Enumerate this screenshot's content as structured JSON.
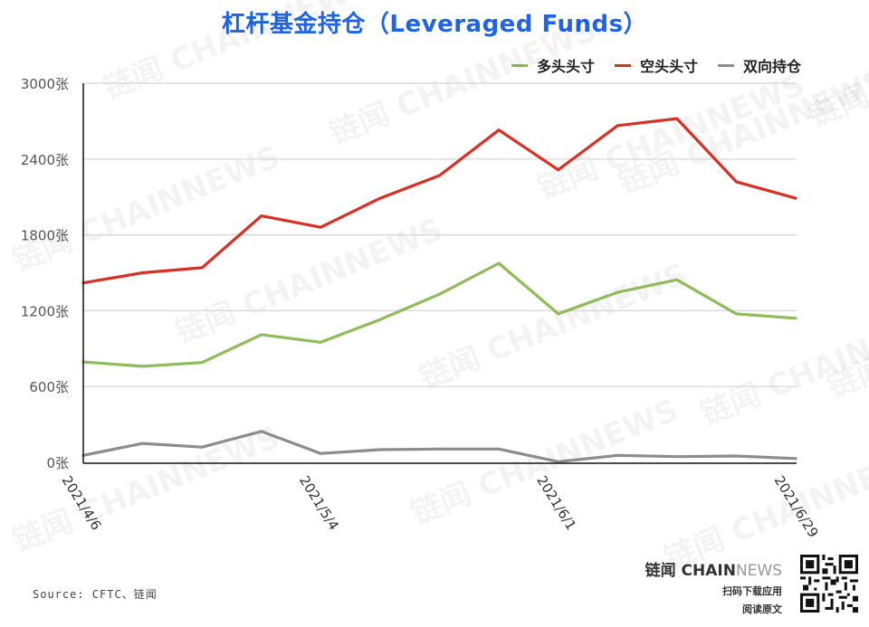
{
  "header": {
    "title": "杠杆基金持仓（Leveraged Funds）"
  },
  "legend": [
    {
      "label": "多头头寸",
      "color": "#8fbc5a"
    },
    {
      "label": "空头头寸",
      "color": "#d93025"
    },
    {
      "label": "双向持仓",
      "color": "#8c8c8c"
    }
  ],
  "axis": {
    "y_ticks": [
      "0张",
      "600张",
      "1200张",
      "1800张",
      "2400张",
      "3000张"
    ],
    "x_ticks": [
      "2021/4/6",
      "2021/5/4",
      "2021/6/1",
      "2021/6/29"
    ]
  },
  "footer": {
    "source": "Source: CFTC、链闻",
    "brand_cn": "链闻 ",
    "brand_chain": "CHAIN",
    "brand_news": "NEWS",
    "line1": "扫码下载应用",
    "line2": "阅读原文"
  },
  "watermark": "链闻 CHAINNEWS",
  "chart_data": {
    "type": "line",
    "title": "杠杆基金持仓（Leveraged Funds）",
    "xlabel": "",
    "ylabel": "",
    "unit": "张",
    "ylim": [
      0,
      3000
    ],
    "grid": true,
    "legend_position": "top-right",
    "x": [
      "2021/4/6",
      "2021/4/13",
      "2021/4/20",
      "2021/4/27",
      "2021/5/4",
      "2021/5/11",
      "2021/5/18",
      "2021/5/25",
      "2021/6/1",
      "2021/6/8",
      "2021/6/15",
      "2021/6/22",
      "2021/6/29"
    ],
    "x_tick_labels": [
      "2021/4/6",
      "2021/5/4",
      "2021/6/1",
      "2021/6/29"
    ],
    "series": [
      {
        "name": "多头头寸",
        "color": "#8fbc5a",
        "values": [
          795,
          760,
          790,
          1010,
          950,
          1130,
          1330,
          1575,
          1175,
          1345,
          1445,
          1175,
          1140
        ]
      },
      {
        "name": "空头头寸",
        "color": "#d93025",
        "values": [
          1420,
          1500,
          1540,
          1950,
          1860,
          2090,
          2270,
          2630,
          2315,
          2665,
          2720,
          2220,
          2090
        ]
      },
      {
        "name": "双向持仓",
        "color": "#8c8c8c",
        "values": [
          55,
          150,
          120,
          245,
          70,
          100,
          105,
          105,
          5,
          55,
          45,
          50,
          30
        ]
      }
    ]
  }
}
